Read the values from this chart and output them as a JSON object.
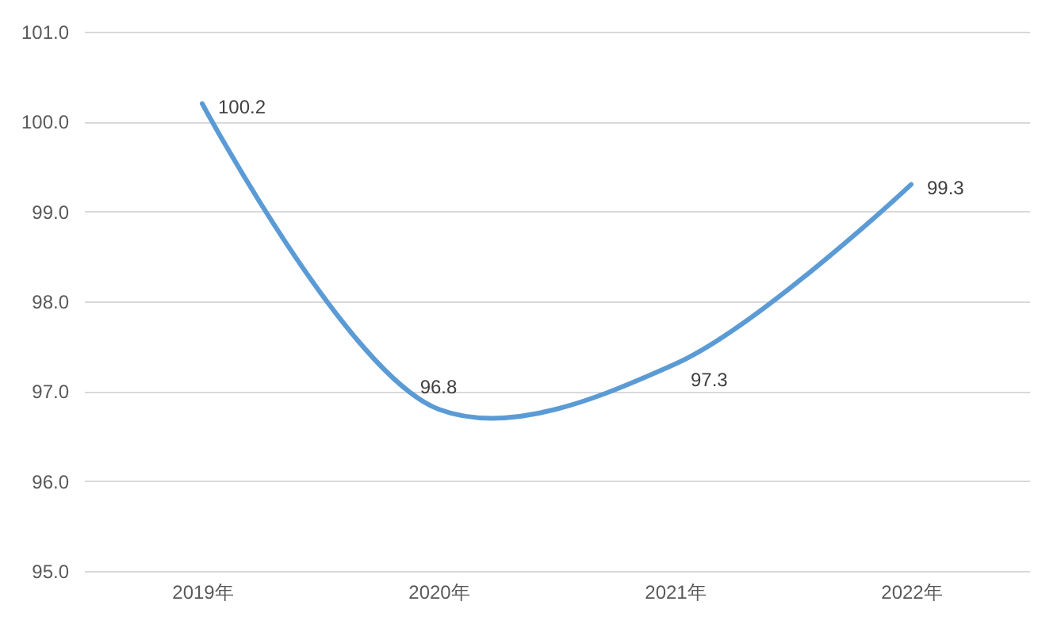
{
  "chart_data": {
    "type": "line",
    "categories": [
      "2019年",
      "2020年",
      "2021年",
      "2022年"
    ],
    "series": [
      {
        "color": "#5b9bd5",
        "values": [
          100.2,
          96.8,
          97.3,
          99.3
        ]
      }
    ],
    "ylim": [
      95,
      101
    ],
    "yticks": [
      {
        "value": 95,
        "label": "95.0"
      },
      {
        "value": 96,
        "label": "96.0"
      },
      {
        "value": 97,
        "label": "97.0"
      },
      {
        "value": 98,
        "label": "98.0"
      },
      {
        "value": 99,
        "label": "99.0"
      },
      {
        "value": 100,
        "label": "100.0"
      },
      {
        "value": 101,
        "label": "101.0"
      }
    ],
    "grid": "y",
    "data_labels": true
  }
}
